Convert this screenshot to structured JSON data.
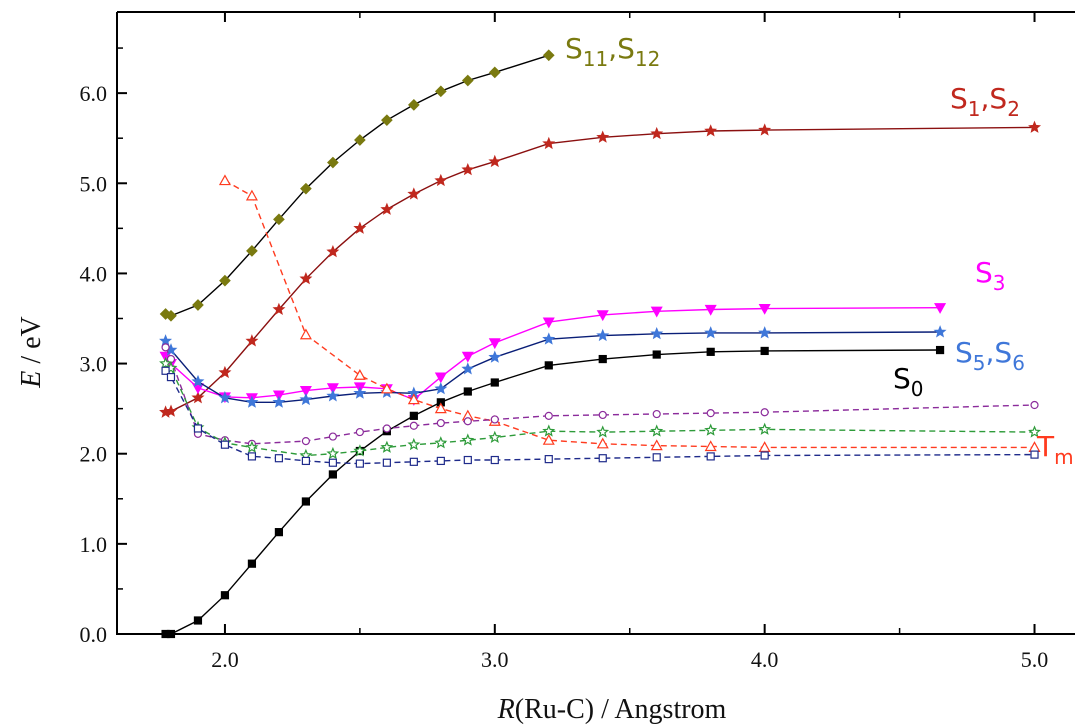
{
  "chart_data": {
    "type": "line",
    "xlabel_var": "R",
    "xlabel_rest": "(Ru-C) / Angstrom",
    "ylabel_var": "E",
    "ylabel_rest": " / eV",
    "xlim": [
      1.6,
      5.15
    ],
    "ylim": [
      0.0,
      6.9
    ],
    "x_ticks": [
      2.0,
      3.0,
      4.0,
      5.0
    ],
    "x_tick_labels": [
      "2.0",
      "3.0",
      "4.0",
      "5.0"
    ],
    "y_ticks": [
      0.0,
      1.0,
      2.0,
      3.0,
      4.0,
      5.0,
      6.0
    ],
    "y_tick_labels": [
      "0.0",
      "1.0",
      "2.0",
      "3.0",
      "4.0",
      "5.0",
      "6.0"
    ],
    "grid": false,
    "series": [
      {
        "name": "S11,S12",
        "label_main": "S",
        "label_sub1": "11",
        "label_sep": ",S",
        "label_sub2": "12",
        "color": "#7a7a10",
        "line": "#000000",
        "marker": "diamond",
        "filled": true,
        "dashed": false,
        "x": [
          1.78,
          1.8,
          1.9,
          2.0,
          2.1,
          2.2,
          2.3,
          2.4,
          2.5,
          2.6,
          2.7,
          2.8,
          2.9,
          3.0,
          3.2
        ],
        "y": [
          3.55,
          3.53,
          3.65,
          3.92,
          4.25,
          4.6,
          4.94,
          5.23,
          5.48,
          5.7,
          5.87,
          6.02,
          6.14,
          6.23,
          6.42
        ]
      },
      {
        "name": "S1,S2",
        "label_main": "S",
        "label_sub1": "1",
        "label_sep": ",S",
        "label_sub2": "2",
        "color": "#c0281e",
        "line": "#8b1010",
        "marker": "star",
        "filled": true,
        "dashed": false,
        "x": [
          1.78,
          1.8,
          1.9,
          2.0,
          2.1,
          2.2,
          2.3,
          2.4,
          2.5,
          2.6,
          2.7,
          2.8,
          2.9,
          3.0,
          3.2,
          3.4,
          3.6,
          3.8,
          4.0,
          5.0
        ],
        "y": [
          2.46,
          2.47,
          2.62,
          2.9,
          3.25,
          3.6,
          3.94,
          4.24,
          4.5,
          4.71,
          4.88,
          5.03,
          5.15,
          5.24,
          5.44,
          5.51,
          5.55,
          5.58,
          5.59,
          5.62
        ]
      },
      {
        "name": "S3",
        "label_main": "S",
        "label_sub1": "3",
        "label_sep": "",
        "label_sub2": "",
        "color": "#ff00ff",
        "line": "#ff00ff",
        "marker": "triangle-down",
        "filled": true,
        "dashed": false,
        "x": [
          1.78,
          1.8,
          1.9,
          2.0,
          2.1,
          2.2,
          2.3,
          2.4,
          2.5,
          2.6,
          2.7,
          2.8,
          2.9,
          3.0,
          3.2,
          3.4,
          3.6,
          3.8,
          4.0,
          4.65
        ],
        "y": [
          3.08,
          3.0,
          2.73,
          2.63,
          2.62,
          2.65,
          2.7,
          2.73,
          2.74,
          2.72,
          2.6,
          2.85,
          3.08,
          3.23,
          3.46,
          3.54,
          3.58,
          3.6,
          3.61,
          3.62
        ]
      },
      {
        "name": "S5,S6",
        "label_main": "S",
        "label_sub1": "5",
        "label_sep": ",S",
        "label_sub2": "6",
        "color": "#3f77d9",
        "line": "#0a1f78",
        "marker": "star",
        "filled": true,
        "dashed": false,
        "x": [
          1.78,
          1.8,
          1.9,
          2.0,
          2.1,
          2.2,
          2.3,
          2.4,
          2.5,
          2.6,
          2.7,
          2.8,
          2.9,
          3.0,
          3.2,
          3.4,
          3.6,
          3.8,
          4.0,
          4.65
        ],
        "y": [
          3.25,
          3.15,
          2.8,
          2.62,
          2.57,
          2.57,
          2.6,
          2.64,
          2.67,
          2.68,
          2.67,
          2.72,
          2.94,
          3.07,
          3.27,
          3.31,
          3.33,
          3.34,
          3.34,
          3.35
        ]
      },
      {
        "name": "S0",
        "label_main": "S",
        "label_sub1": "0",
        "label_sep": "",
        "label_sub2": "",
        "color": "#000000",
        "line": "#000000",
        "marker": "square",
        "filled": true,
        "dashed": false,
        "x": [
          1.78,
          1.8,
          1.9,
          2.0,
          2.1,
          2.2,
          2.3,
          2.4,
          2.5,
          2.6,
          2.7,
          2.8,
          2.9,
          3.0,
          3.2,
          3.4,
          3.6,
          3.8,
          4.0,
          4.65
        ],
        "y": [
          0.0,
          0.0,
          0.15,
          0.43,
          0.78,
          1.13,
          1.47,
          1.77,
          2.03,
          2.25,
          2.42,
          2.57,
          2.69,
          2.79,
          2.98,
          3.05,
          3.1,
          3.13,
          3.14,
          3.15
        ]
      },
      {
        "name": "Tm",
        "label_main": "T",
        "label_sub1": "m",
        "label_sep": "",
        "label_sub2": "",
        "color": "#ff3b1f",
        "line": "#ff3b1f",
        "marker": "triangle-up",
        "filled": false,
        "dashed": true,
        "x": [
          2.0,
          2.1,
          2.3,
          2.5,
          2.6,
          2.7,
          2.8,
          2.9,
          3.0,
          3.2,
          3.4,
          3.6,
          3.8,
          4.0,
          5.0
        ],
        "y": [
          5.03,
          4.86,
          3.32,
          2.87,
          2.72,
          2.6,
          2.5,
          2.42,
          2.36,
          2.15,
          2.11,
          2.09,
          2.08,
          2.07,
          2.07
        ]
      },
      {
        "name": "purple-circles",
        "label_main": "",
        "label_sub1": "",
        "label_sep": "",
        "label_sub2": "",
        "color": "#8b2b9b",
        "line": "#8b2b9b",
        "marker": "circle",
        "filled": false,
        "dashed": true,
        "x": [
          1.78,
          1.8,
          1.9,
          2.0,
          2.1,
          2.3,
          2.4,
          2.5,
          2.6,
          2.7,
          2.8,
          2.9,
          3.0,
          3.2,
          3.4,
          3.6,
          3.8,
          4.0,
          5.0
        ],
        "y": [
          3.18,
          3.05,
          2.22,
          2.15,
          2.11,
          2.14,
          2.19,
          2.24,
          2.28,
          2.31,
          2.34,
          2.36,
          2.38,
          2.42,
          2.43,
          2.44,
          2.45,
          2.46,
          2.54
        ]
      },
      {
        "name": "green-stars",
        "label_main": "",
        "label_sub1": "",
        "label_sep": "",
        "label_sub2": "",
        "color": "#2e9b3a",
        "line": "#2e9b3a",
        "marker": "star",
        "filled": false,
        "dashed": true,
        "x": [
          1.78,
          1.8,
          1.9,
          2.0,
          2.1,
          2.3,
          2.4,
          2.5,
          2.6,
          2.7,
          2.8,
          2.9,
          3.0,
          3.2,
          3.4,
          3.6,
          3.8,
          4.0,
          5.0
        ],
        "y": [
          3.0,
          2.95,
          2.29,
          2.12,
          2.07,
          1.98,
          2.0,
          2.03,
          2.07,
          2.1,
          2.12,
          2.15,
          2.18,
          2.25,
          2.24,
          2.25,
          2.26,
          2.27,
          2.24
        ]
      },
      {
        "name": "navy-squares",
        "label_main": "",
        "label_sub1": "",
        "label_sep": "",
        "label_sub2": "",
        "color": "#1f2b8b",
        "line": "#1f2b8b",
        "marker": "square",
        "filled": false,
        "dashed": true,
        "x": [
          1.78,
          1.8,
          1.9,
          2.0,
          2.1,
          2.2,
          2.3,
          2.4,
          2.5,
          2.6,
          2.7,
          2.8,
          2.9,
          3.0,
          3.2,
          3.4,
          3.6,
          3.8,
          4.0,
          5.0
        ],
        "y": [
          2.92,
          2.85,
          2.28,
          2.1,
          1.97,
          1.95,
          1.92,
          1.9,
          1.89,
          1.9,
          1.91,
          1.92,
          1.93,
          1.93,
          1.94,
          1.95,
          1.96,
          1.97,
          1.98,
          1.99
        ]
      }
    ]
  }
}
